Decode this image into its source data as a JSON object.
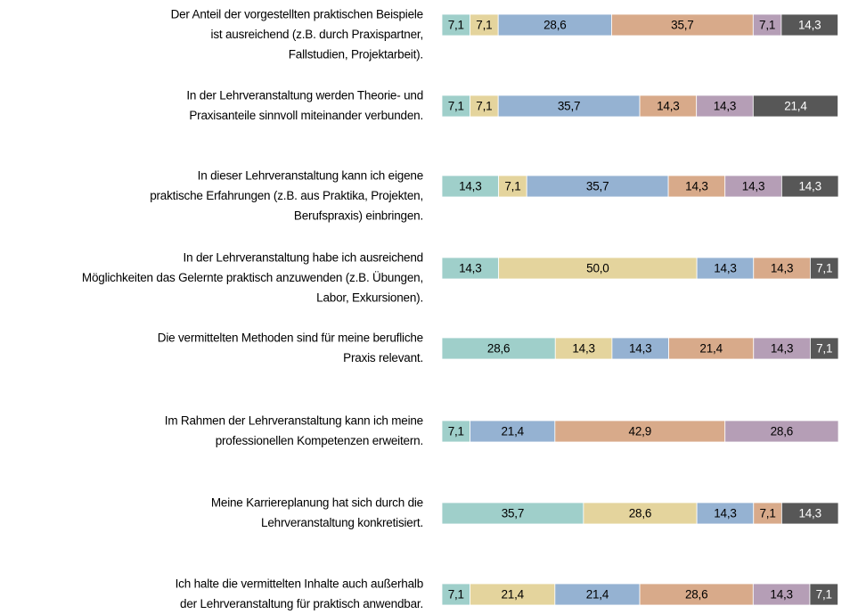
{
  "chart_data": {
    "type": "stacked_barh",
    "categories": [
      [
        "Der Anteil der vorgestellten praktischen Beispiele",
        "ist ausreichend (z.B. durch Praxispartner,",
        "Fallstudien, Projektarbeit)."
      ],
      [
        "In der Lehrveranstaltung werden Theorie- und",
        "Praxisanteile sinnvoll miteinander verbunden."
      ],
      [
        "In dieser Lehrveranstaltung kann ich eigene",
        "praktische Erfahrungen (z.B. aus Praktika, Projekten,",
        "Berufspraxis) einbringen."
      ],
      [
        "In der Lehrveranstaltung habe ich ausreichend",
        "Möglichkeiten das Gelernte praktisch anzuwenden (z.B. Übungen,",
        "Labor, Exkursionen)."
      ],
      [
        "Die vermittelten Methoden sind für meine berufliche",
        "Praxis relevant."
      ],
      [
        "Im Rahmen der Lehrveranstaltung kann ich meine",
        "professionellen Kompetenzen erweitern."
      ],
      [
        "Meine Karriereplanung hat sich durch die",
        "Lehrveranstaltung konkretisiert."
      ],
      [
        "Ich halte die vermittelten Inhalte auch außerhalb",
        "der Lehrveranstaltung für praktisch anwendbar."
      ]
    ],
    "xlim": [
      0,
      100
    ],
    "series": [
      {
        "color": "#9fcfca",
        "text_color": "#000000",
        "values": [
          7.1,
          7.1,
          14.3,
          14.3,
          28.6,
          7.1,
          35.7,
          7.1
        ],
        "value_labels": [
          "7,1",
          "7,1",
          "14,3",
          "14,3",
          "28,6",
          "7,1",
          "35,7",
          "7,1"
        ]
      },
      {
        "color": "#e4d49d",
        "text_color": "#000000",
        "values": [
          7.1,
          7.1,
          7.1,
          50.0,
          14.3,
          null,
          28.6,
          21.4
        ],
        "value_labels": [
          "7,1",
          "7,1",
          "7,1",
          "50,0",
          "14,3",
          null,
          "28,6",
          "21,4"
        ]
      },
      {
        "color": "#95b2d2",
        "text_color": "#000000",
        "values": [
          28.6,
          35.7,
          35.7,
          14.3,
          14.3,
          21.4,
          14.3,
          21.4
        ],
        "value_labels": [
          "28,6",
          "35,7",
          "35,7",
          "14,3",
          "14,3",
          "21,4",
          "14,3",
          "21,4"
        ]
      },
      {
        "color": "#d8aa8a",
        "text_color": "#000000",
        "values": [
          35.7,
          14.3,
          14.3,
          14.3,
          21.4,
          42.9,
          7.1,
          28.6
        ],
        "value_labels": [
          "35,7",
          "14,3",
          "14,3",
          "14,3",
          "21,4",
          "42,9",
          "7,1",
          "28,6"
        ]
      },
      {
        "color": "#b59eb6",
        "text_color": "#000000",
        "values": [
          7.1,
          14.3,
          14.3,
          null,
          14.3,
          28.6,
          null,
          14.3
        ],
        "value_labels": [
          "7,1",
          "14,3",
          "14,3",
          null,
          "14,3",
          "28,6",
          null,
          "14,3"
        ]
      },
      {
        "color": "#575757",
        "text_color": "#ffffff",
        "values": [
          14.3,
          21.4,
          14.3,
          7.1,
          7.1,
          null,
          14.3,
          7.1
        ],
        "value_labels": [
          "14,3",
          "21,4",
          "14,3",
          "7,1",
          "7,1",
          null,
          "14,3",
          "7,1"
        ]
      }
    ]
  }
}
